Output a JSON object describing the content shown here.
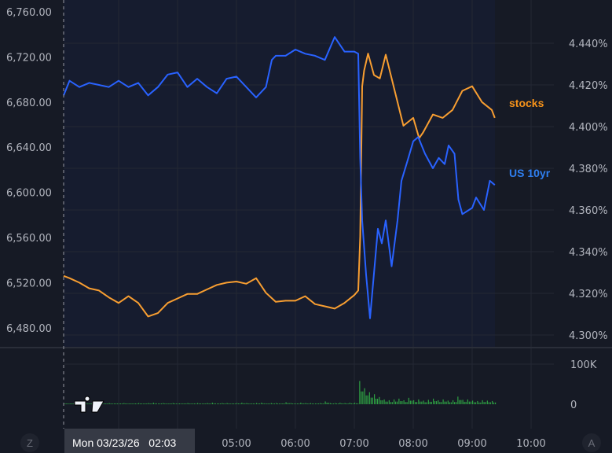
{
  "chart_data": {
    "type": "line",
    "title": "",
    "x_axis": {
      "ticks": [
        "05:00",
        "06:00",
        "07:00",
        "08:00",
        "09:00",
        "10:00"
      ],
      "crosshair_label": "Mon 03/23/26   02:03",
      "range": [
        "02:04",
        "10:40"
      ]
    },
    "left_axis": {
      "ticks": [
        "6,760.00",
        "6,720.00",
        "6,680.00",
        "6,640.00",
        "6,600.00",
        "6,560.00",
        "6,520.00",
        "6,480.00"
      ],
      "range": [
        6470,
        6770
      ]
    },
    "right_axis": {
      "ticks": [
        "4.440%",
        "4.420%",
        "4.400%",
        "4.380%",
        "4.360%",
        "4.340%",
        "4.320%",
        "4.300%"
      ],
      "range": [
        4.296,
        4.458
      ]
    },
    "volume_axis": {
      "ticks": [
        "100K",
        "0"
      ]
    },
    "grid": true,
    "series": [
      {
        "name": "stocks",
        "axis": "left",
        "color": "#f89e31",
        "x": [
          "02:04",
          "02:10",
          "02:20",
          "02:30",
          "02:40",
          "02:50",
          "03:00",
          "03:10",
          "03:20",
          "03:30",
          "03:40",
          "03:50",
          "04:00",
          "04:10",
          "04:20",
          "04:30",
          "04:40",
          "04:50",
          "05:00",
          "05:10",
          "05:20",
          "05:30",
          "05:40",
          "05:50",
          "06:00",
          "06:10",
          "06:20",
          "06:30",
          "06:40",
          "06:50",
          "07:00",
          "07:04",
          "07:06",
          "07:08",
          "07:10",
          "07:14",
          "07:20",
          "07:26",
          "07:32",
          "07:40",
          "07:50",
          "08:00",
          "08:06",
          "08:10",
          "08:20",
          "08:30",
          "08:40",
          "08:50",
          "09:00",
          "09:10",
          "09:20",
          "09:23"
        ],
        "values": [
          6526,
          6524,
          6520,
          6515,
          6513,
          6507,
          6502,
          6508,
          6502,
          6490,
          6493,
          6502,
          6506,
          6510,
          6510,
          6514,
          6518,
          6520,
          6521,
          6519,
          6524,
          6511,
          6503,
          6504,
          6504,
          6508,
          6501,
          6499,
          6497,
          6502,
          6509,
          6513,
          6561,
          6694,
          6708,
          6723,
          6704,
          6701,
          6722,
          6694,
          6659,
          6666,
          6648,
          6653,
          6669,
          6666,
          6673,
          6690,
          6694,
          6680,
          6673,
          6666
        ]
      },
      {
        "name": "US 10yr",
        "axis": "right",
        "color": "#2962ff",
        "x": [
          "02:04",
          "02:10",
          "02:20",
          "02:30",
          "02:40",
          "02:50",
          "03:00",
          "03:10",
          "03:20",
          "03:30",
          "03:40",
          "03:50",
          "04:00",
          "04:10",
          "04:20",
          "04:30",
          "04:40",
          "04:50",
          "05:00",
          "05:10",
          "05:20",
          "05:30",
          "05:36",
          "05:40",
          "05:50",
          "06:00",
          "06:10",
          "06:20",
          "06:30",
          "06:40",
          "06:50",
          "07:00",
          "07:04",
          "07:06",
          "07:08",
          "07:12",
          "07:16",
          "07:24",
          "07:28",
          "07:32",
          "07:38",
          "07:44",
          "07:48",
          "07:55",
          "08:00",
          "08:05",
          "08:12",
          "08:20",
          "08:26",
          "08:32",
          "08:36",
          "08:42",
          "08:46",
          "08:50",
          "09:00",
          "09:04",
          "09:12",
          "09:18",
          "09:23"
        ],
        "values": [
          4.415,
          4.422,
          4.419,
          4.421,
          4.42,
          4.419,
          4.422,
          4.419,
          4.421,
          4.415,
          4.419,
          4.425,
          4.426,
          4.419,
          4.423,
          4.419,
          4.416,
          4.423,
          4.424,
          4.419,
          4.414,
          4.419,
          4.432,
          4.434,
          4.434,
          4.437,
          4.435,
          4.434,
          4.432,
          4.443,
          4.436,
          4.436,
          4.435,
          4.385,
          4.355,
          4.329,
          4.308,
          4.351,
          4.344,
          4.355,
          4.333,
          4.355,
          4.374,
          4.385,
          4.393,
          4.395,
          4.387,
          4.38,
          4.385,
          4.382,
          4.391,
          4.387,
          4.365,
          4.358,
          4.361,
          4.366,
          4.36,
          4.374,
          4.372
        ]
      }
    ],
    "volume": {
      "color": "#2ea043",
      "interval_minutes": 5,
      "start": "02:05",
      "values_k": [
        2,
        1,
        2,
        1,
        2,
        2,
        1,
        2,
        2,
        3,
        2,
        2,
        3,
        2,
        2,
        3,
        2,
        3,
        4,
        2,
        3,
        2,
        3,
        2,
        2,
        3,
        2,
        3,
        2,
        3,
        4,
        2,
        3,
        3,
        2,
        3,
        4,
        3,
        2,
        3,
        4,
        2,
        3,
        3,
        2,
        5,
        3,
        2,
        4,
        3,
        3,
        2,
        3,
        7,
        3,
        3,
        4,
        3,
        4,
        4,
        58,
        40,
        30,
        25,
        18,
        12,
        10,
        12,
        14,
        10,
        16,
        10,
        12,
        9,
        11,
        14,
        10,
        12,
        9,
        10,
        19,
        11,
        12,
        9,
        8,
        10,
        9,
        8
      ]
    }
  },
  "labels": {
    "stocks": "stocks",
    "us10yr": "US 10yr"
  },
  "corner_buttons": {
    "left": "Z",
    "right": "A"
  },
  "colors": {
    "background": "#161a25",
    "shaded": "#161c2f",
    "grid": "#242833",
    "stocks_label": "#f7931a",
    "us10yr_label": "#2f7ff0"
  }
}
